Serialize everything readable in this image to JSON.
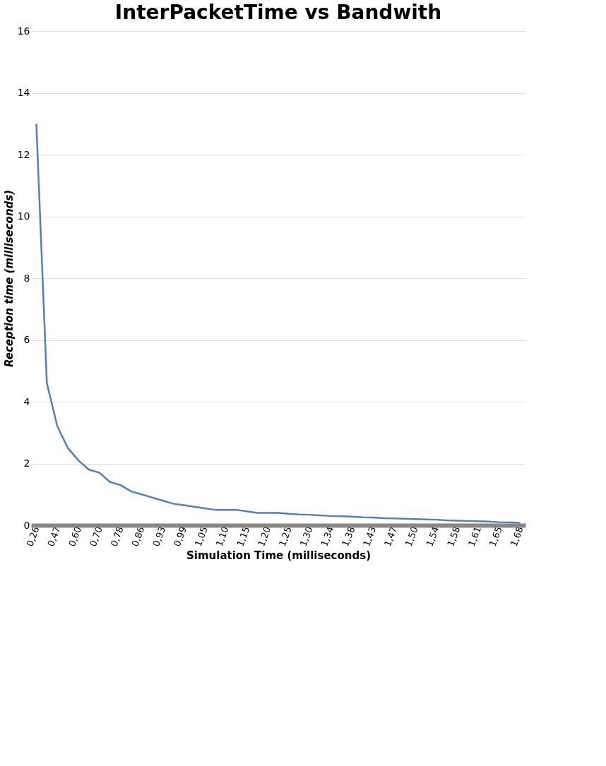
{
  "chart_data": {
    "type": "line",
    "title": "InterPacketTime vs Bandwith",
    "xlabel": "Simulation Time (milliseconds)",
    "ylabel": "Reception time (milliseconds)",
    "categories": [
      "0,26",
      null,
      "0,47",
      null,
      "0,60",
      null,
      "0,70",
      null,
      "0,78",
      null,
      "0,86",
      null,
      "0,93",
      null,
      "0,99",
      null,
      "1,05",
      null,
      "1,10",
      null,
      "1,15",
      null,
      "1,20",
      null,
      "1,25",
      null,
      "1,30",
      null,
      "1,34",
      null,
      "1,38",
      null,
      "1,43",
      null,
      "1,47",
      null,
      "1,50",
      null,
      "1,54",
      null,
      "1,58",
      null,
      "1,61",
      null,
      "1,65",
      null,
      "1,68"
    ],
    "series": [
      {
        "color": "#4f81bd",
        "values": [
          13,
          4.6,
          3.2,
          2.5,
          2.1,
          1.8,
          1.7,
          1.4,
          1.3,
          1.1,
          1.0,
          0.9,
          0.8,
          0.7,
          0.65,
          0.6,
          0.55,
          0.5,
          0.5,
          0.5,
          0.45,
          0.4,
          0.4,
          0.4,
          0.37,
          0.35,
          0.34,
          0.32,
          0.3,
          0.29,
          0.28,
          0.26,
          0.25,
          0.23,
          0.22,
          0.21,
          0.2,
          0.19,
          0.18,
          0.16,
          0.15,
          0.14,
          0.13,
          0.12,
          0.1,
          0.09,
          0.08
        ]
      }
    ],
    "ylim": [
      0,
      16
    ],
    "yticks": [
      0,
      2,
      4,
      6,
      8,
      10,
      12,
      14,
      16
    ],
    "grid": "y",
    "legend": false
  }
}
